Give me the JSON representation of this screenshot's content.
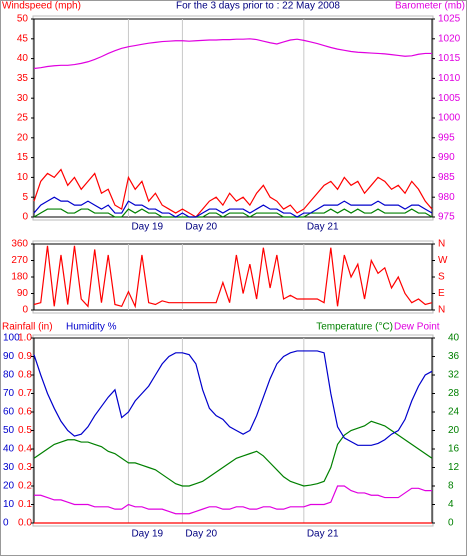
{
  "chart_data": [
    {
      "type": "line",
      "title": "For the 3 days prior to : 22 May 2008",
      "ylabel": "Windspeed (mph)",
      "ycolor": "#ff0000",
      "y2label": "Barometer (mb)",
      "y2color": "#e000e0",
      "categories": [
        null,
        null,
        null,
        null,
        null,
        null,
        null,
        null,
        null,
        null,
        null,
        null,
        null,
        null,
        "Day 19",
        null,
        null,
        null,
        null,
        null,
        null,
        null,
        "Day 20",
        null,
        null,
        null,
        null,
        null,
        null,
        null,
        null,
        null,
        null,
        null,
        null,
        null,
        null,
        null,
        null,
        null,
        "Day 21",
        null,
        null,
        null,
        null,
        null,
        null,
        null,
        null,
        null,
        null,
        null,
        null,
        null,
        null,
        null,
        null,
        null,
        null,
        null
      ],
      "ylim": [
        0,
        50
      ],
      "yticks": [
        0,
        5,
        10,
        15,
        20,
        25,
        30,
        35,
        40,
        45,
        50
      ],
      "y2lim": [
        975,
        1025
      ],
      "y2ticks": [
        975,
        980,
        985,
        990,
        995,
        1000,
        1005,
        1010,
        1015,
        1020,
        1025
      ],
      "series": [
        {
          "color": "#ff0000",
          "values": [
            4,
            9,
            11,
            10,
            12,
            8,
            10,
            7,
            9,
            11,
            6,
            7,
            3,
            2,
            10,
            7,
            9,
            4,
            6,
            3,
            2,
            1,
            2,
            1,
            0,
            2,
            4,
            5,
            3,
            6,
            4,
            5,
            3,
            6,
            8,
            5,
            4,
            2,
            3,
            1,
            2,
            4,
            6,
            8,
            9,
            7,
            10,
            8,
            9,
            6,
            8,
            10,
            9,
            7,
            8,
            6,
            9,
            7,
            4,
            2
          ]
        },
        {
          "color": "#008000",
          "values": [
            0,
            1,
            2,
            2,
            2,
            1,
            1,
            2,
            2,
            1,
            1,
            1,
            0,
            0,
            2,
            1,
            2,
            1,
            1,
            0,
            0,
            0,
            0,
            0,
            0,
            0,
            1,
            1,
            0,
            1,
            1,
            1,
            0,
            1,
            1,
            1,
            1,
            0,
            0,
            0,
            0,
            1,
            1,
            1,
            2,
            1,
            2,
            1,
            2,
            1,
            1,
            2,
            1,
            1,
            1,
            1,
            2,
            1,
            1,
            0
          ]
        },
        {
          "color": "#0000cc",
          "values": [
            1,
            3,
            4,
            5,
            4,
            4,
            3,
            3,
            4,
            3,
            2,
            3,
            1,
            1,
            4,
            3,
            3,
            2,
            2,
            1,
            1,
            0,
            1,
            0,
            0,
            1,
            2,
            2,
            1,
            2,
            2,
            2,
            1,
            2,
            3,
            2,
            2,
            1,
            1,
            0,
            1,
            1,
            2,
            3,
            3,
            3,
            4,
            3,
            3,
            3,
            3,
            4,
            3,
            3,
            3,
            2,
            3,
            3,
            2,
            1
          ]
        },
        {
          "color": "#e000e0",
          "axis": "y2",
          "values": [
            1012.5,
            1012.7,
            1013,
            1013.2,
            1013.3,
            1013.3,
            1013.5,
            1013.8,
            1014.2,
            1014.8,
            1015.5,
            1016.3,
            1017,
            1017.6,
            1018,
            1018.3,
            1018.6,
            1018.9,
            1019.1,
            1019.3,
            1019.4,
            1019.5,
            1019.5,
            1019.4,
            1019.5,
            1019.6,
            1019.7,
            1019.7,
            1019.8,
            1019.8,
            1019.9,
            1019.9,
            1020,
            1019.8,
            1019.4,
            1019,
            1018.7,
            1019.2,
            1019.7,
            1019.9,
            1019.6,
            1019.2,
            1018.8,
            1018.3,
            1017.8,
            1017.4,
            1017.1,
            1016.8,
            1016.6,
            1016.5,
            1016.4,
            1016.3,
            1016.2,
            1016,
            1015.8,
            1015.6,
            1015.7,
            1016.1,
            1016.3,
            1016.3
          ]
        }
      ]
    },
    {
      "type": "line",
      "ycolor": "#ff0000",
      "y2color": "#ff0000",
      "ylim": [
        0,
        360
      ],
      "yticks": [
        0,
        90,
        180,
        270,
        360
      ],
      "y2lim": [
        0,
        360
      ],
      "y2ticks": [
        {
          "value": 0,
          "label": "N"
        },
        {
          "value": 90,
          "label": "E"
        },
        {
          "value": 180,
          "label": "S"
        },
        {
          "value": 270,
          "label": "W"
        },
        {
          "value": 360,
          "label": "N"
        }
      ],
      "series": [
        {
          "color": "#ff0000",
          "values": [
            30,
            40,
            350,
            20,
            300,
            30,
            350,
            60,
            20,
            330,
            40,
            300,
            30,
            20,
            100,
            20,
            300,
            40,
            30,
            50,
            40,
            40,
            40,
            40,
            40,
            40,
            40,
            40,
            150,
            40,
            300,
            90,
            250,
            60,
            340,
            120,
            300,
            60,
            80,
            60,
            60,
            60,
            60,
            40,
            340,
            20,
            300,
            180,
            250,
            60,
            270,
            200,
            230,
            120,
            180,
            90,
            40,
            60,
            30,
            40
          ]
        }
      ]
    },
    {
      "type": "line",
      "ylabel": "Humidity %",
      "ycolor": "#0000cc",
      "y3label": "Rainfall (in)",
      "y3color": "#ff0000",
      "y2label": "Temperature (°C)",
      "y2color": "#008000",
      "categories": [
        null,
        null,
        null,
        null,
        null,
        null,
        null,
        null,
        null,
        null,
        null,
        null,
        null,
        null,
        "Day 19",
        null,
        null,
        null,
        null,
        null,
        null,
        null,
        "Day 20",
        null,
        null,
        null,
        null,
        null,
        null,
        null,
        null,
        null,
        null,
        null,
        null,
        null,
        null,
        null,
        null,
        null,
        "Day 21",
        null,
        null,
        null,
        null,
        null,
        null,
        null,
        null,
        null,
        null,
        null,
        null,
        null,
        null,
        null,
        null,
        null,
        null,
        null
      ],
      "ylim": [
        0,
        100
      ],
      "yticks": [
        0,
        10,
        20,
        30,
        40,
        50,
        60,
        70,
        80,
        90,
        100
      ],
      "y3lim": [
        0,
        1
      ],
      "y3ticks": [
        {
          "value": 0,
          "label": "0.0"
        },
        0.1,
        0.2,
        0.3,
        0.4,
        0.5,
        0.6,
        0.7,
        0.8,
        0.9,
        {
          "value": 1,
          "label": "1.0"
        }
      ],
      "y2lim": [
        0,
        40
      ],
      "y2ticks": [
        0,
        4,
        8,
        12,
        16,
        20,
        24,
        28,
        32,
        36,
        40
      ],
      "series": [
        {
          "color": "#ff0000",
          "axis": "y3",
          "values": [
            0,
            0,
            0,
            0,
            0,
            0,
            0,
            0,
            0,
            0,
            0,
            0,
            0,
            0,
            0,
            0,
            0,
            0,
            0,
            0,
            0,
            0,
            0,
            0,
            0,
            0,
            0,
            0,
            0,
            0,
            0,
            0,
            0,
            0,
            0,
            0,
            0,
            0,
            0,
            0,
            0,
            0,
            0,
            0,
            0,
            0,
            0,
            0,
            0,
            0,
            0,
            0,
            0,
            0,
            0,
            0,
            0,
            0,
            0,
            0
          ]
        },
        {
          "color": "#e000e0",
          "axis": "y2",
          "name": "Dew Point",
          "values": [
            6,
            6,
            5.5,
            5,
            5,
            4.5,
            4,
            4,
            4,
            3.5,
            3.5,
            3.5,
            3,
            3,
            4,
            3.5,
            3.5,
            3,
            3,
            3,
            2.5,
            2,
            2,
            2,
            2.5,
            3,
            3.5,
            3.5,
            3,
            3,
            3.5,
            3.5,
            3,
            3,
            3.5,
            3.5,
            3,
            3,
            3.5,
            3.5,
            3.5,
            4,
            4,
            4,
            4.5,
            8,
            8,
            7,
            6.5,
            6.5,
            6,
            6,
            5.5,
            5.5,
            5.5,
            6.5,
            7.5,
            7.5,
            7,
            7
          ]
        },
        {
          "color": "#008000",
          "axis": "y2",
          "values": [
            14,
            15,
            16,
            17,
            17.5,
            18,
            18,
            17.5,
            17.5,
            17,
            16.5,
            15.5,
            15,
            14,
            13,
            13,
            12.5,
            12,
            11.5,
            10.5,
            9.5,
            8.5,
            8,
            8,
            8.5,
            9,
            10,
            11,
            12,
            13,
            14,
            14.5,
            15,
            15.5,
            14.5,
            13,
            11.5,
            10,
            9,
            8.5,
            8,
            8.2,
            8.5,
            9,
            12,
            17,
            19,
            20,
            20.5,
            21,
            22,
            21.5,
            21,
            20,
            19,
            18,
            17,
            16,
            15,
            14
          ]
        },
        {
          "color": "#0000cc",
          "values": [
            91,
            80,
            70,
            62,
            55,
            50,
            47,
            48,
            52,
            58,
            63,
            68,
            72,
            57,
            60,
            66,
            70,
            74,
            80,
            86,
            90,
            92,
            92,
            91,
            86,
            72,
            62,
            58,
            56,
            52,
            50,
            48,
            50,
            58,
            68,
            78,
            86,
            90,
            92,
            93,
            93,
            93,
            93,
            92,
            70,
            52,
            46,
            44,
            42,
            42,
            42,
            43,
            45,
            48,
            50,
            56,
            66,
            74,
            80,
            82
          ]
        }
      ]
    }
  ]
}
